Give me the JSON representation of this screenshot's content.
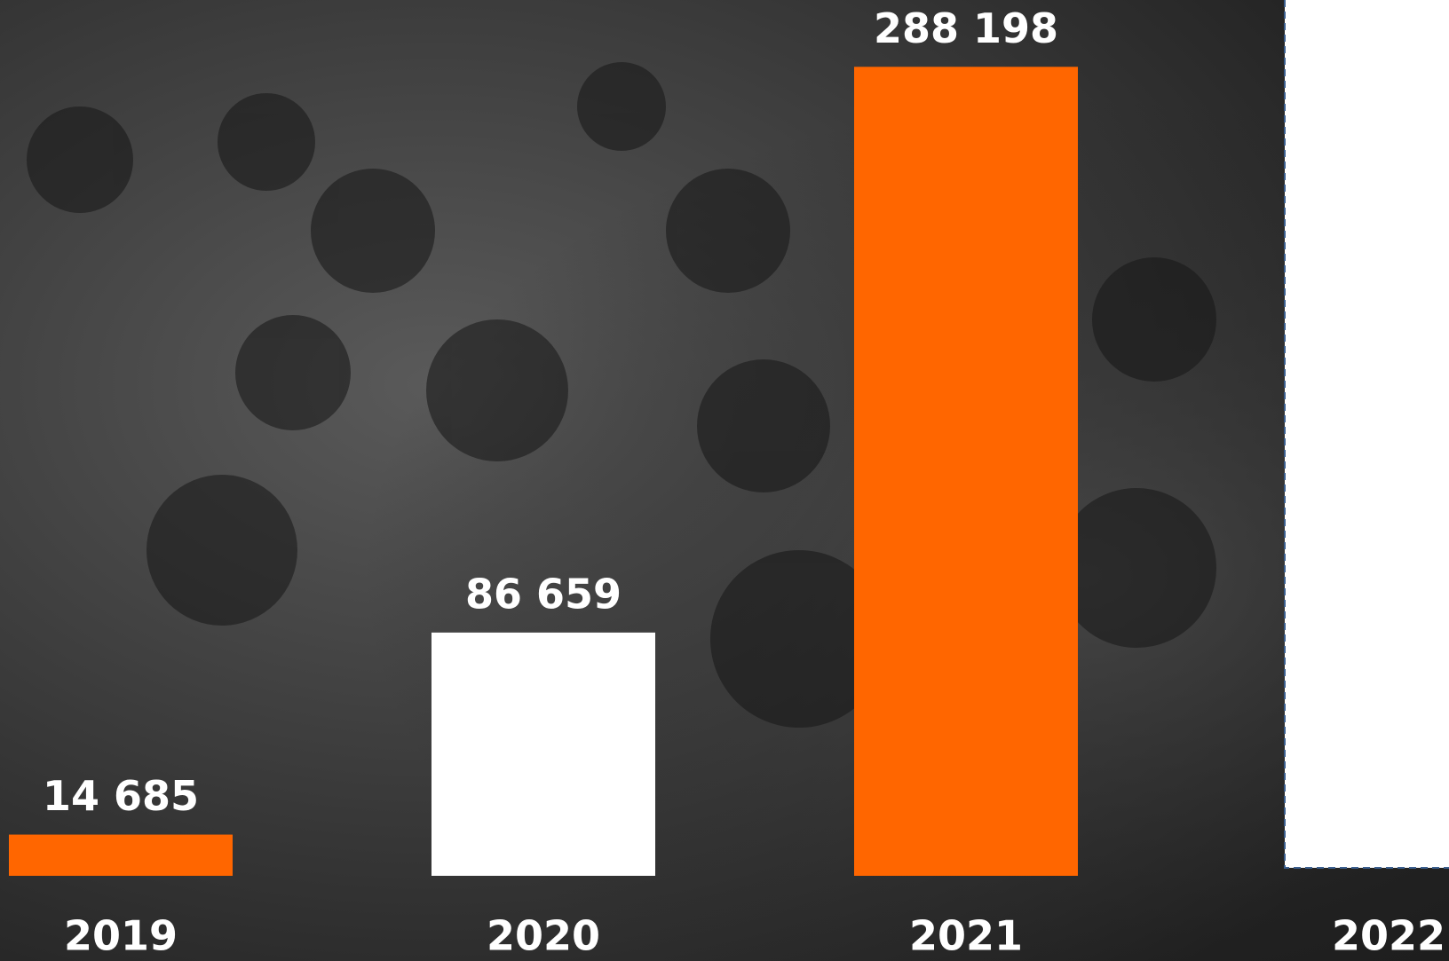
{
  "chart_data": {
    "type": "bar",
    "categories": [
      "2019",
      "2020",
      "2021",
      "2022"
    ],
    "values": [
      14685,
      86659,
      288198,
      null
    ],
    "value_labels": [
      "14 685",
      "86 659",
      "288 198",
      null
    ],
    "colors": [
      "#ff6600",
      "#ffffff",
      "#ff6600",
      "#ffffff"
    ],
    "ylim": [
      0,
      312000
    ]
  }
}
